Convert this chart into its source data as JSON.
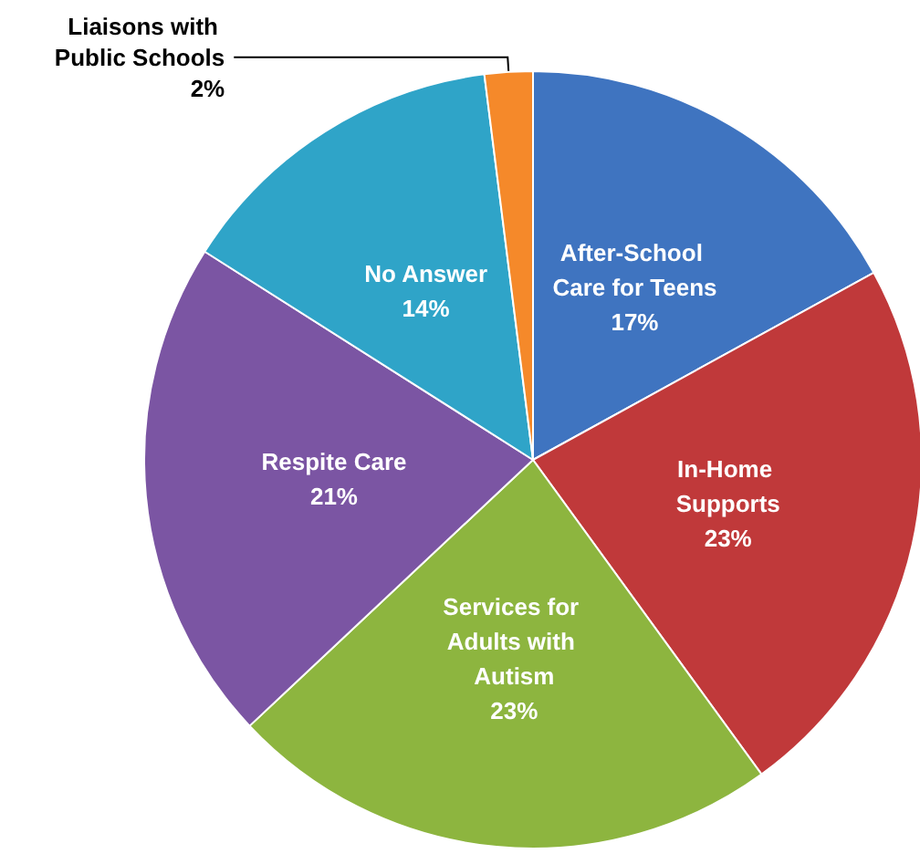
{
  "chart_data": {
    "type": "pie",
    "categories": [
      "After-School Care for Teens",
      "In-Home Supports",
      "Services for Adults with Autism",
      "Respite Care",
      "No Answer",
      "Liaisons with Public Schools"
    ],
    "values": [
      17,
      23,
      23,
      21,
      14,
      2
    ],
    "colors": [
      "#3f74c0",
      "#c0393a",
      "#8db53f",
      "#7b55a3",
      "#2fa4c8",
      "#f5892a"
    ],
    "value_labels": [
      "17%",
      "23%",
      "23%",
      "21%",
      "14%",
      "2%"
    ],
    "legend": false
  }
}
